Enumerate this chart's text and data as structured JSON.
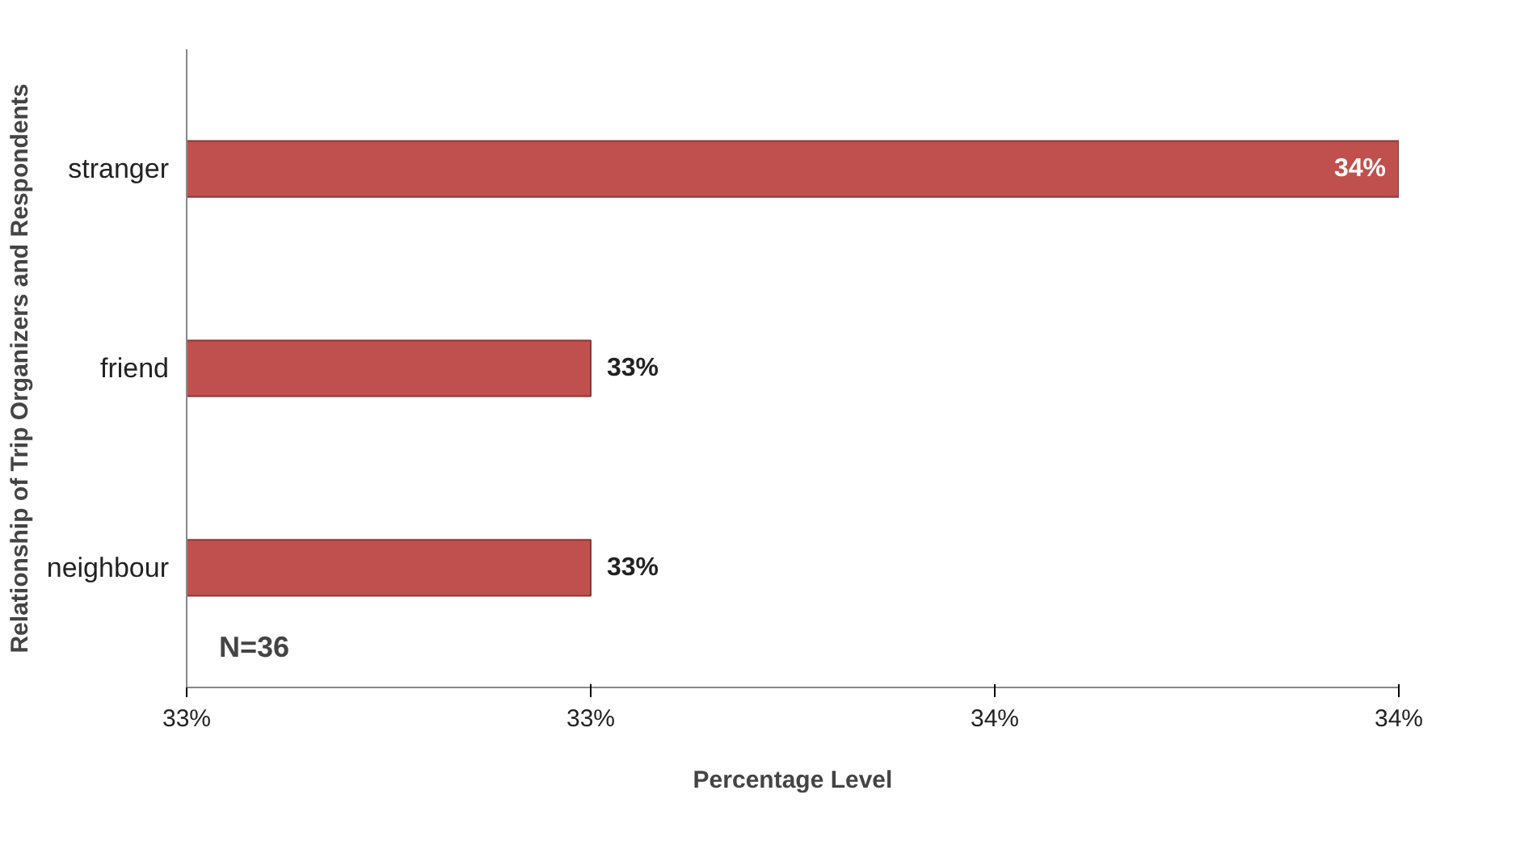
{
  "chart_data": {
    "type": "bar",
    "orientation": "horizontal",
    "categories": [
      "stranger",
      "friend",
      "neighbour"
    ],
    "values": [
      33.8,
      33.4,
      33.4
    ],
    "color": "#c0504d",
    "value_labels": [
      "34%",
      "33%",
      "33%"
    ],
    "xlim": [
      33.2,
      33.8
    ],
    "xticks": [
      {
        "value": 33.2,
        "label": "33%"
      },
      {
        "value": 33.4,
        "label": "33%"
      },
      {
        "value": 33.6,
        "label": "34%"
      },
      {
        "value": 33.8,
        "label": "34%"
      }
    ],
    "xlabel": "Percentage Level",
    "ylabel": "Relationship of Trip Organizers and Respondents",
    "annotations": [
      "N=36"
    ],
    "grid": false
  }
}
